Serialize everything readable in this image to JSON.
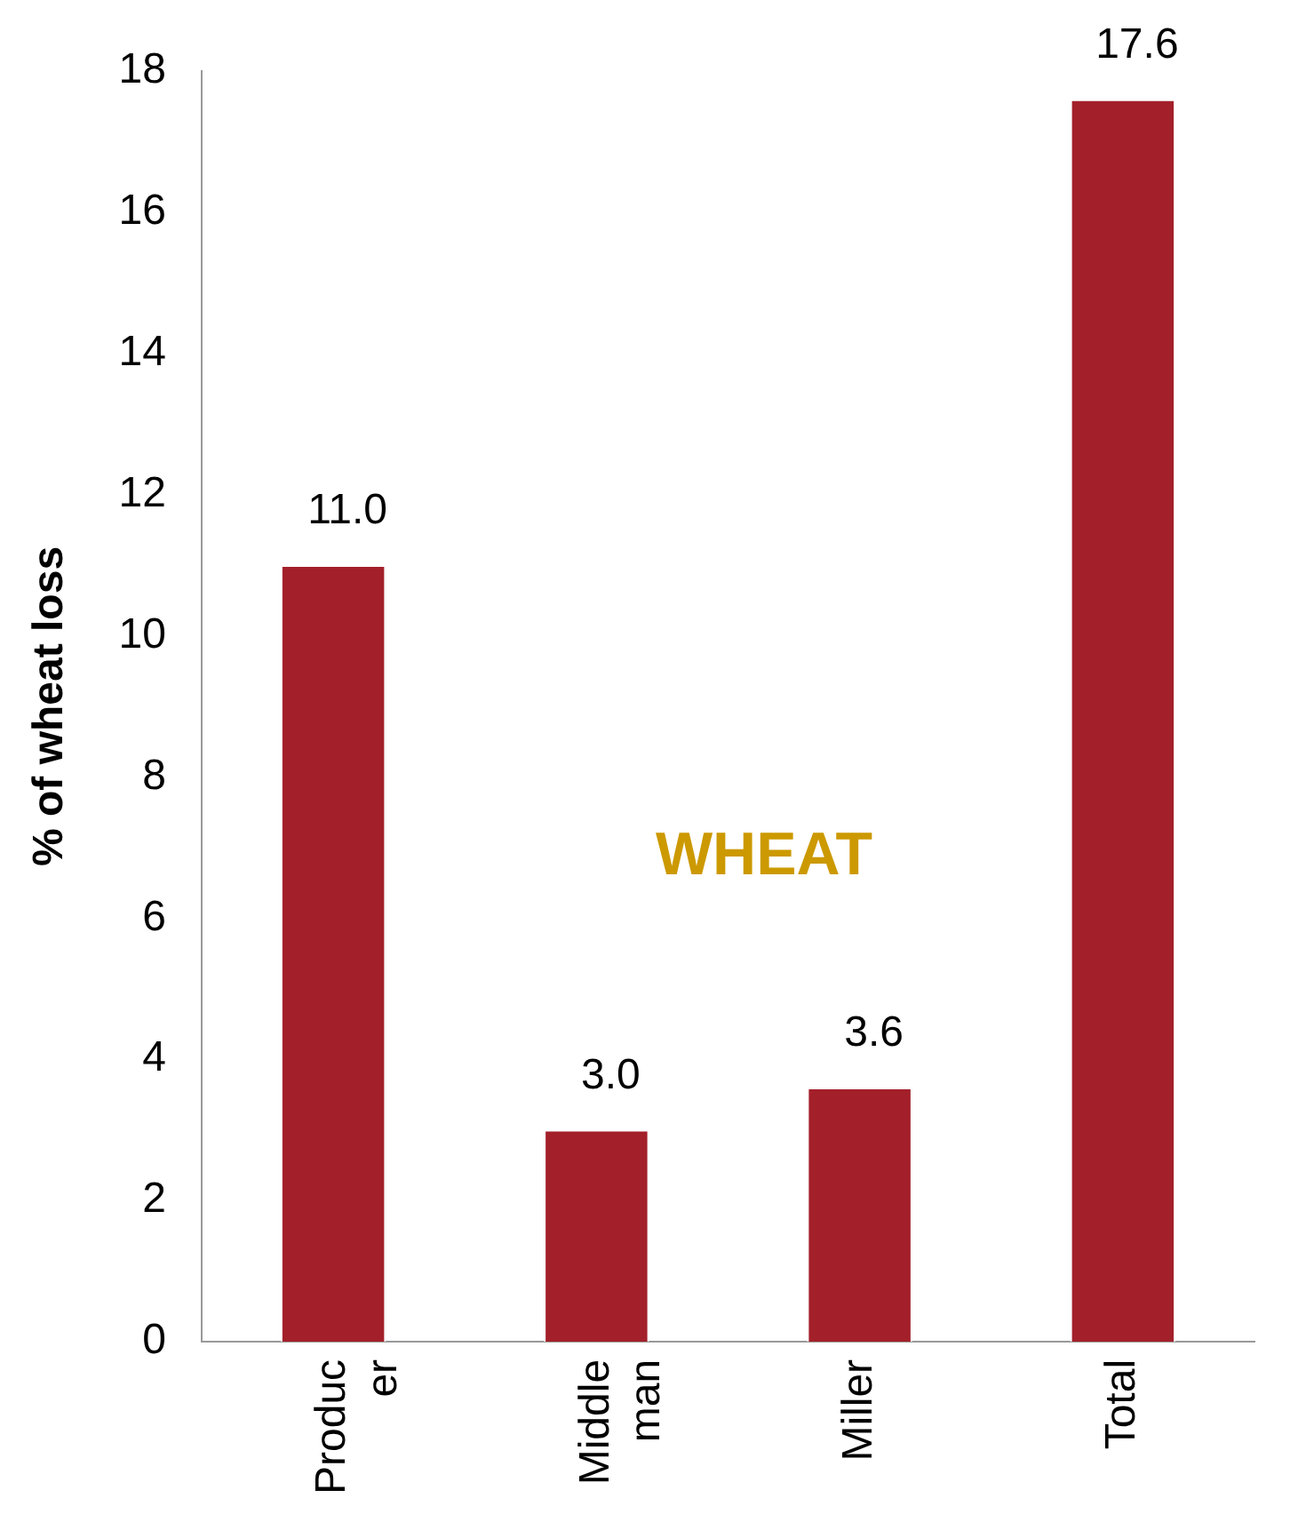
{
  "chart_data": {
    "type": "bar",
    "ylabel": "% of wheat loss",
    "categories": [
      "Producer",
      "Middleman",
      "Miller",
      "Total"
    ],
    "values": [
      11.0,
      3.0,
      3.6,
      17.6
    ],
    "value_labels": [
      "11.0",
      "3.0",
      "3.6",
      "17.6"
    ],
    "color": "#a3202a",
    "ylim": [
      0,
      18
    ],
    "yticks": [
      0,
      2,
      4,
      6,
      8,
      10,
      12,
      14,
      16,
      18
    ],
    "grid": false,
    "legend": false,
    "annotations": [
      "WHEAT"
    ]
  }
}
